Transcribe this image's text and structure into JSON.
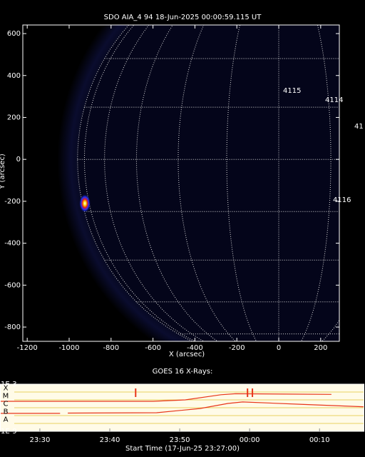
{
  "chart_data": [
    {
      "type": "image",
      "title": "SDO AIA_4 94 18-Jun-2025 00:00:59.115 UT",
      "x_label": "X (arcsec)",
      "y_label": "Y (arcsec)",
      "xlim": [
        -1221,
        289
      ],
      "ylim": [
        -868,
        641
      ],
      "xticks": [
        -1200,
        -1000,
        -800,
        -600,
        -400,
        -200,
        0,
        200
      ],
      "yticks": [
        600,
        400,
        200,
        0,
        -200,
        -400,
        -600,
        -800
      ],
      "annotations": [
        "4115",
        "4114",
        "41",
        "4116"
      ],
      "bright_source": [
        -925,
        -210
      ]
    },
    {
      "type": "line",
      "title": "GOES 16 X-Rays:",
      "x_label": "Start Time (17-Jun-25 23:27:00)",
      "log_scale": true,
      "xlim": [
        -2.7,
        49.4
      ],
      "ylim": [
        1e-09,
        0.001
      ],
      "xticks": [
        {
          "value": 3,
          "label": "23:30"
        },
        {
          "value": 13,
          "label": "23:40"
        },
        {
          "value": 23,
          "label": "23:50"
        },
        {
          "value": 33,
          "label": "00:00"
        },
        {
          "value": 43,
          "label": "00:10"
        }
      ],
      "yticks": [
        {
          "value": 0.001,
          "label": "1E-3"
        },
        {
          "value": 1e-09,
          "label": "1E-9"
        }
      ],
      "grid_values": [
        0.0001,
        1e-05,
        1e-06,
        1e-07,
        1e-08
      ],
      "class_labels": [
        {
          "value": 0.000316,
          "label": "X"
        },
        {
          "value": 3.16e-05,
          "label": "M"
        },
        {
          "value": 3.16e-06,
          "label": "C"
        },
        {
          "value": 3.16e-07,
          "label": "B"
        },
        {
          "value": 3.16e-08,
          "label": "A"
        }
      ],
      "series": [
        {
          "color": "#e8361a",
          "x": [
            -2.7,
            19.2,
            23.8,
            28.9,
            31,
            38.1,
            44.7
          ],
          "values": [
            6.6e-06,
            6.6e-06,
            1e-05,
            4.5e-05,
            6e-05,
            5.4e-05,
            5e-05
          ]
        },
        {
          "color": "#e8361a",
          "x": [
            -2.7,
            5.9,
            6.5,
            7,
            19.7,
            25.9,
            29.9,
            32,
            40.1,
            49.4
          ],
          "values": [
            1.9e-07,
            1.9e-07,
            null,
            2.1e-07,
            2.3e-07,
            8e-07,
            3.5e-06,
            5.4e-06,
            2.8e-06,
            1.3e-06
          ]
        }
      ],
      "events": [
        16.7,
        32.7,
        33.4
      ],
      "event_color": "#e8361a"
    }
  ]
}
